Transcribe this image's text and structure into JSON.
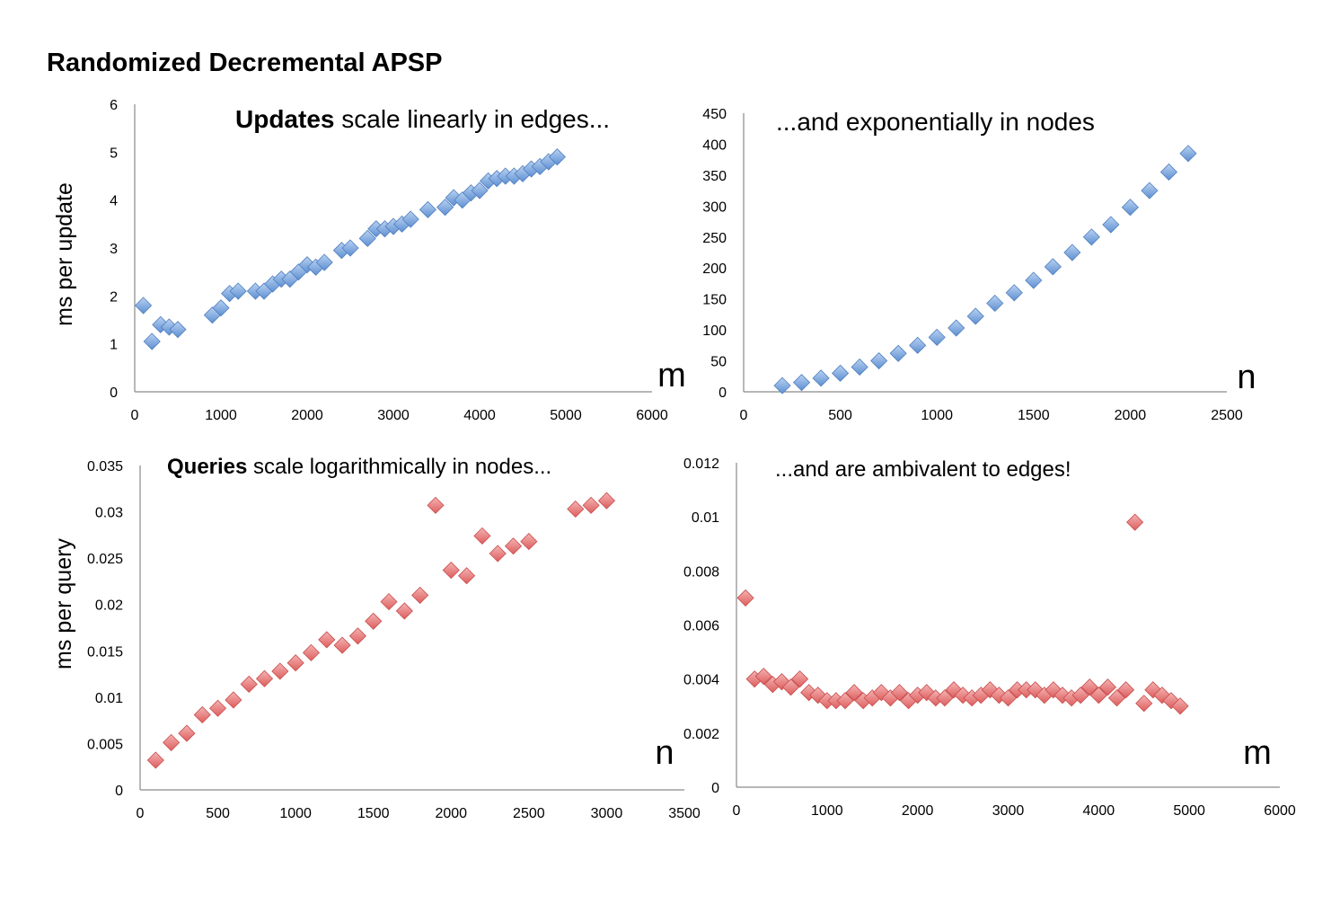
{
  "title": "Randomized Decremental APSP",
  "chart_data": [
    {
      "type": "scatter",
      "ylabel": "ms per update",
      "xlabel": "m",
      "annotation_bold": "Updates",
      "annotation_rest": " scale linearly in edges...",
      "xlim": [
        0,
        6000
      ],
      "ylim": [
        0,
        6
      ],
      "xticks": [
        0,
        1000,
        2000,
        3000,
        4000,
        5000,
        6000
      ],
      "yticks": [
        0,
        1,
        2,
        3,
        4,
        5,
        6
      ],
      "tick_labels_x": [
        "0",
        "1000",
        "2000",
        "3000",
        "4000",
        "5000",
        "6000"
      ],
      "tick_labels_y": [
        "0",
        "1",
        "2",
        "3",
        "4",
        "5",
        "6"
      ],
      "color": "#7ea6dc",
      "points": [
        [
          100,
          1.8
        ],
        [
          200,
          1.05
        ],
        [
          300,
          1.4
        ],
        [
          400,
          1.35
        ],
        [
          500,
          1.3
        ],
        [
          900,
          1.6
        ],
        [
          1000,
          1.75
        ],
        [
          1100,
          2.05
        ],
        [
          1200,
          2.1
        ],
        [
          1400,
          2.1
        ],
        [
          1500,
          2.1
        ],
        [
          1600,
          2.25
        ],
        [
          1700,
          2.35
        ],
        [
          1800,
          2.35
        ],
        [
          1900,
          2.5
        ],
        [
          2000,
          2.65
        ],
        [
          2100,
          2.6
        ],
        [
          2200,
          2.7
        ],
        [
          2400,
          2.95
        ],
        [
          2500,
          3.0
        ],
        [
          2700,
          3.2
        ],
        [
          2800,
          3.4
        ],
        [
          2900,
          3.4
        ],
        [
          3000,
          3.45
        ],
        [
          3100,
          3.5
        ],
        [
          3200,
          3.6
        ],
        [
          3400,
          3.8
        ],
        [
          3600,
          3.85
        ],
        [
          3700,
          4.05
        ],
        [
          3800,
          4.0
        ],
        [
          3900,
          4.15
        ],
        [
          4000,
          4.2
        ],
        [
          4100,
          4.4
        ],
        [
          4200,
          4.45
        ],
        [
          4300,
          4.5
        ],
        [
          4400,
          4.5
        ],
        [
          4500,
          4.55
        ],
        [
          4600,
          4.65
        ],
        [
          4700,
          4.7
        ],
        [
          4800,
          4.8
        ],
        [
          4900,
          4.9
        ]
      ]
    },
    {
      "type": "scatter",
      "ylabel": "",
      "xlabel": "n",
      "annotation_bold": "",
      "annotation_rest": "...and exponentially in nodes",
      "xlim": [
        0,
        2500
      ],
      "ylim": [
        0,
        450
      ],
      "xticks": [
        0,
        500,
        1000,
        1500,
        2000,
        2500
      ],
      "yticks": [
        0,
        50,
        100,
        150,
        200,
        250,
        300,
        350,
        400,
        450
      ],
      "tick_labels_x": [
        "0",
        "500",
        "1000",
        "1500",
        "2000",
        "2500"
      ],
      "tick_labels_y": [
        "0",
        "50",
        "100",
        "150",
        "200",
        "250",
        "300",
        "350",
        "400",
        "450"
      ],
      "color": "#7ea6dc",
      "points": [
        [
          200,
          10
        ],
        [
          300,
          15
        ],
        [
          400,
          22
        ],
        [
          500,
          30
        ],
        [
          600,
          40
        ],
        [
          700,
          50
        ],
        [
          800,
          62
        ],
        [
          900,
          75
        ],
        [
          1000,
          88
        ],
        [
          1100,
          103
        ],
        [
          1200,
          122
        ],
        [
          1300,
          143
        ],
        [
          1400,
          160
        ],
        [
          1500,
          180
        ],
        [
          1600,
          202
        ],
        [
          1700,
          225
        ],
        [
          1800,
          250
        ],
        [
          1900,
          270
        ],
        [
          2000,
          298
        ],
        [
          2100,
          325
        ],
        [
          2200,
          355
        ],
        [
          2300,
          385
        ]
      ]
    },
    {
      "type": "scatter",
      "ylabel": "ms per query",
      "xlabel": "n",
      "annotation_bold": "Queries",
      "annotation_rest": " scale logarithmically in nodes...",
      "xlim": [
        0,
        3500
      ],
      "ylim": [
        0,
        0.035
      ],
      "xticks": [
        0,
        500,
        1000,
        1500,
        2000,
        2500,
        3000,
        3500
      ],
      "yticks": [
        0,
        0.005,
        0.01,
        0.015,
        0.02,
        0.025,
        0.03,
        0.035
      ],
      "tick_labels_x": [
        "0",
        "500",
        "1000",
        "1500",
        "2000",
        "2500",
        "3000",
        "3500"
      ],
      "tick_labels_y": [
        "0",
        "0.005",
        "0.01",
        "0.015",
        "0.02",
        "0.025",
        "0.03",
        "0.035"
      ],
      "color": "#e87f7f",
      "points": [
        [
          100,
          0.0032
        ],
        [
          200,
          0.0051
        ],
        [
          300,
          0.0061
        ],
        [
          400,
          0.0081
        ],
        [
          500,
          0.0088
        ],
        [
          600,
          0.0097
        ],
        [
          700,
          0.0114
        ],
        [
          800,
          0.012
        ],
        [
          900,
          0.0128
        ],
        [
          1000,
          0.0137
        ],
        [
          1100,
          0.0148
        ],
        [
          1200,
          0.0162
        ],
        [
          1300,
          0.0156
        ],
        [
          1400,
          0.0166
        ],
        [
          1500,
          0.0182
        ],
        [
          1600,
          0.0203
        ],
        [
          1700,
          0.0193
        ],
        [
          1800,
          0.021
        ],
        [
          1900,
          0.0307
        ],
        [
          2000,
          0.0237
        ],
        [
          2100,
          0.0231
        ],
        [
          2200,
          0.0274
        ],
        [
          2300,
          0.0255
        ],
        [
          2400,
          0.0263
        ],
        [
          2500,
          0.0268
        ],
        [
          2800,
          0.0303
        ],
        [
          2900,
          0.0307
        ],
        [
          3000,
          0.0312
        ]
      ]
    },
    {
      "type": "scatter",
      "ylabel": "",
      "xlabel": "m",
      "annotation_bold": "",
      "annotation_rest": "...and are ambivalent to edges!",
      "xlim": [
        0,
        6000
      ],
      "ylim": [
        0,
        0.012
      ],
      "xticks": [
        0,
        1000,
        2000,
        3000,
        4000,
        5000,
        6000
      ],
      "yticks": [
        0,
        0.002,
        0.004,
        0.006,
        0.008,
        0.01,
        0.012
      ],
      "tick_labels_x": [
        "0",
        "1000",
        "2000",
        "3000",
        "4000",
        "5000",
        "6000"
      ],
      "tick_labels_y": [
        "0",
        "0.002",
        "0.004",
        "0.006",
        "0.008",
        "0.01",
        "0.012"
      ],
      "color": "#e87f7f",
      "points": [
        [
          100,
          0.007
        ],
        [
          200,
          0.004
        ],
        [
          300,
          0.0041
        ],
        [
          400,
          0.0038
        ],
        [
          500,
          0.0039
        ],
        [
          600,
          0.0037
        ],
        [
          700,
          0.004
        ],
        [
          800,
          0.0035
        ],
        [
          900,
          0.0034
        ],
        [
          1000,
          0.0032
        ],
        [
          1100,
          0.0032
        ],
        [
          1200,
          0.0032
        ],
        [
          1300,
          0.0035
        ],
        [
          1400,
          0.0032
        ],
        [
          1500,
          0.0033
        ],
        [
          1600,
          0.0035
        ],
        [
          1700,
          0.0033
        ],
        [
          1800,
          0.0035
        ],
        [
          1900,
          0.0032
        ],
        [
          2000,
          0.0034
        ],
        [
          2100,
          0.0035
        ],
        [
          2200,
          0.0033
        ],
        [
          2300,
          0.0033
        ],
        [
          2400,
          0.0036
        ],
        [
          2500,
          0.0034
        ],
        [
          2600,
          0.0033
        ],
        [
          2700,
          0.0034
        ],
        [
          2800,
          0.0036
        ],
        [
          2900,
          0.0034
        ],
        [
          3000,
          0.0033
        ],
        [
          3100,
          0.0036
        ],
        [
          3200,
          0.0036
        ],
        [
          3300,
          0.0036
        ],
        [
          3400,
          0.0034
        ],
        [
          3500,
          0.0036
        ],
        [
          3600,
          0.0034
        ],
        [
          3700,
          0.0033
        ],
        [
          3800,
          0.0034
        ],
        [
          3900,
          0.0037
        ],
        [
          4000,
          0.0034
        ],
        [
          4100,
          0.0037
        ],
        [
          4200,
          0.0033
        ],
        [
          4300,
          0.0036
        ],
        [
          4400,
          0.0098
        ],
        [
          4500,
          0.0031
        ],
        [
          4600,
          0.0036
        ],
        [
          4700,
          0.0034
        ],
        [
          4800,
          0.0032
        ],
        [
          4900,
          0.003
        ]
      ]
    }
  ]
}
